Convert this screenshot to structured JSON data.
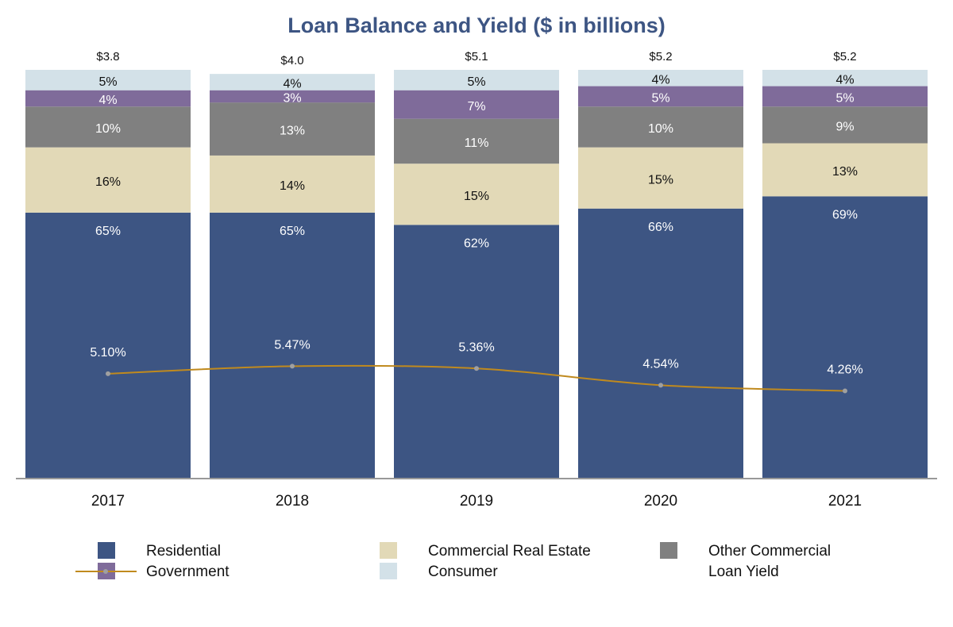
{
  "chart_data": {
    "type": "bar",
    "title": "Loan Balance and Yield ($ in billions)",
    "categories": [
      "2017",
      "2018",
      "2019",
      "2020",
      "2021"
    ],
    "series": [
      {
        "name": "Residential",
        "color": "#3d5583",
        "values": [
          65,
          65,
          62,
          66,
          69
        ],
        "value_labels": [
          "65%",
          "65%",
          "62%",
          "66%",
          "69%"
        ]
      },
      {
        "name": "Commercial Real Estate",
        "color": "#e2d9b7",
        "values": [
          16,
          14,
          15,
          15,
          13
        ],
        "value_labels": [
          "16%",
          "14%",
          "15%",
          "15%",
          "13%"
        ]
      },
      {
        "name": "Other Commercial",
        "color": "#808080",
        "values": [
          10,
          13,
          11,
          10,
          9
        ],
        "value_labels": [
          "10%",
          "13%",
          "11%",
          "10%",
          "9%"
        ]
      },
      {
        "name": "Government",
        "color": "#7f6b9a",
        "values": [
          4,
          3,
          7,
          5,
          5
        ],
        "value_labels": [
          "4%",
          "3%",
          "7%",
          "5%",
          "5%"
        ]
      },
      {
        "name": "Consumer",
        "color": "#d3e1e8",
        "values": [
          5,
          4,
          5,
          4,
          4
        ],
        "value_labels": [
          "5%",
          "4%",
          "5%",
          "4%",
          "4%"
        ]
      },
      {
        "name": "Loan Yield",
        "type": "line",
        "axis": "y2",
        "color": "#c08a1e",
        "values": [
          5.1,
          5.47,
          5.36,
          4.54,
          4.26
        ],
        "value_labels": [
          "5.10%",
          "5.47%",
          "5.36%",
          "4.54%",
          "4.26%"
        ]
      }
    ],
    "totals": {
      "values": [
        3.8,
        4.0,
        5.1,
        5.2,
        5.2
      ],
      "value_labels": [
        "$3.8",
        "$4.0",
        "$5.1",
        "$5.2",
        "$5.2"
      ]
    },
    "ylim": [
      0,
      100
    ],
    "y2lim": [
      0,
      20
    ],
    "legend": "bottom"
  }
}
